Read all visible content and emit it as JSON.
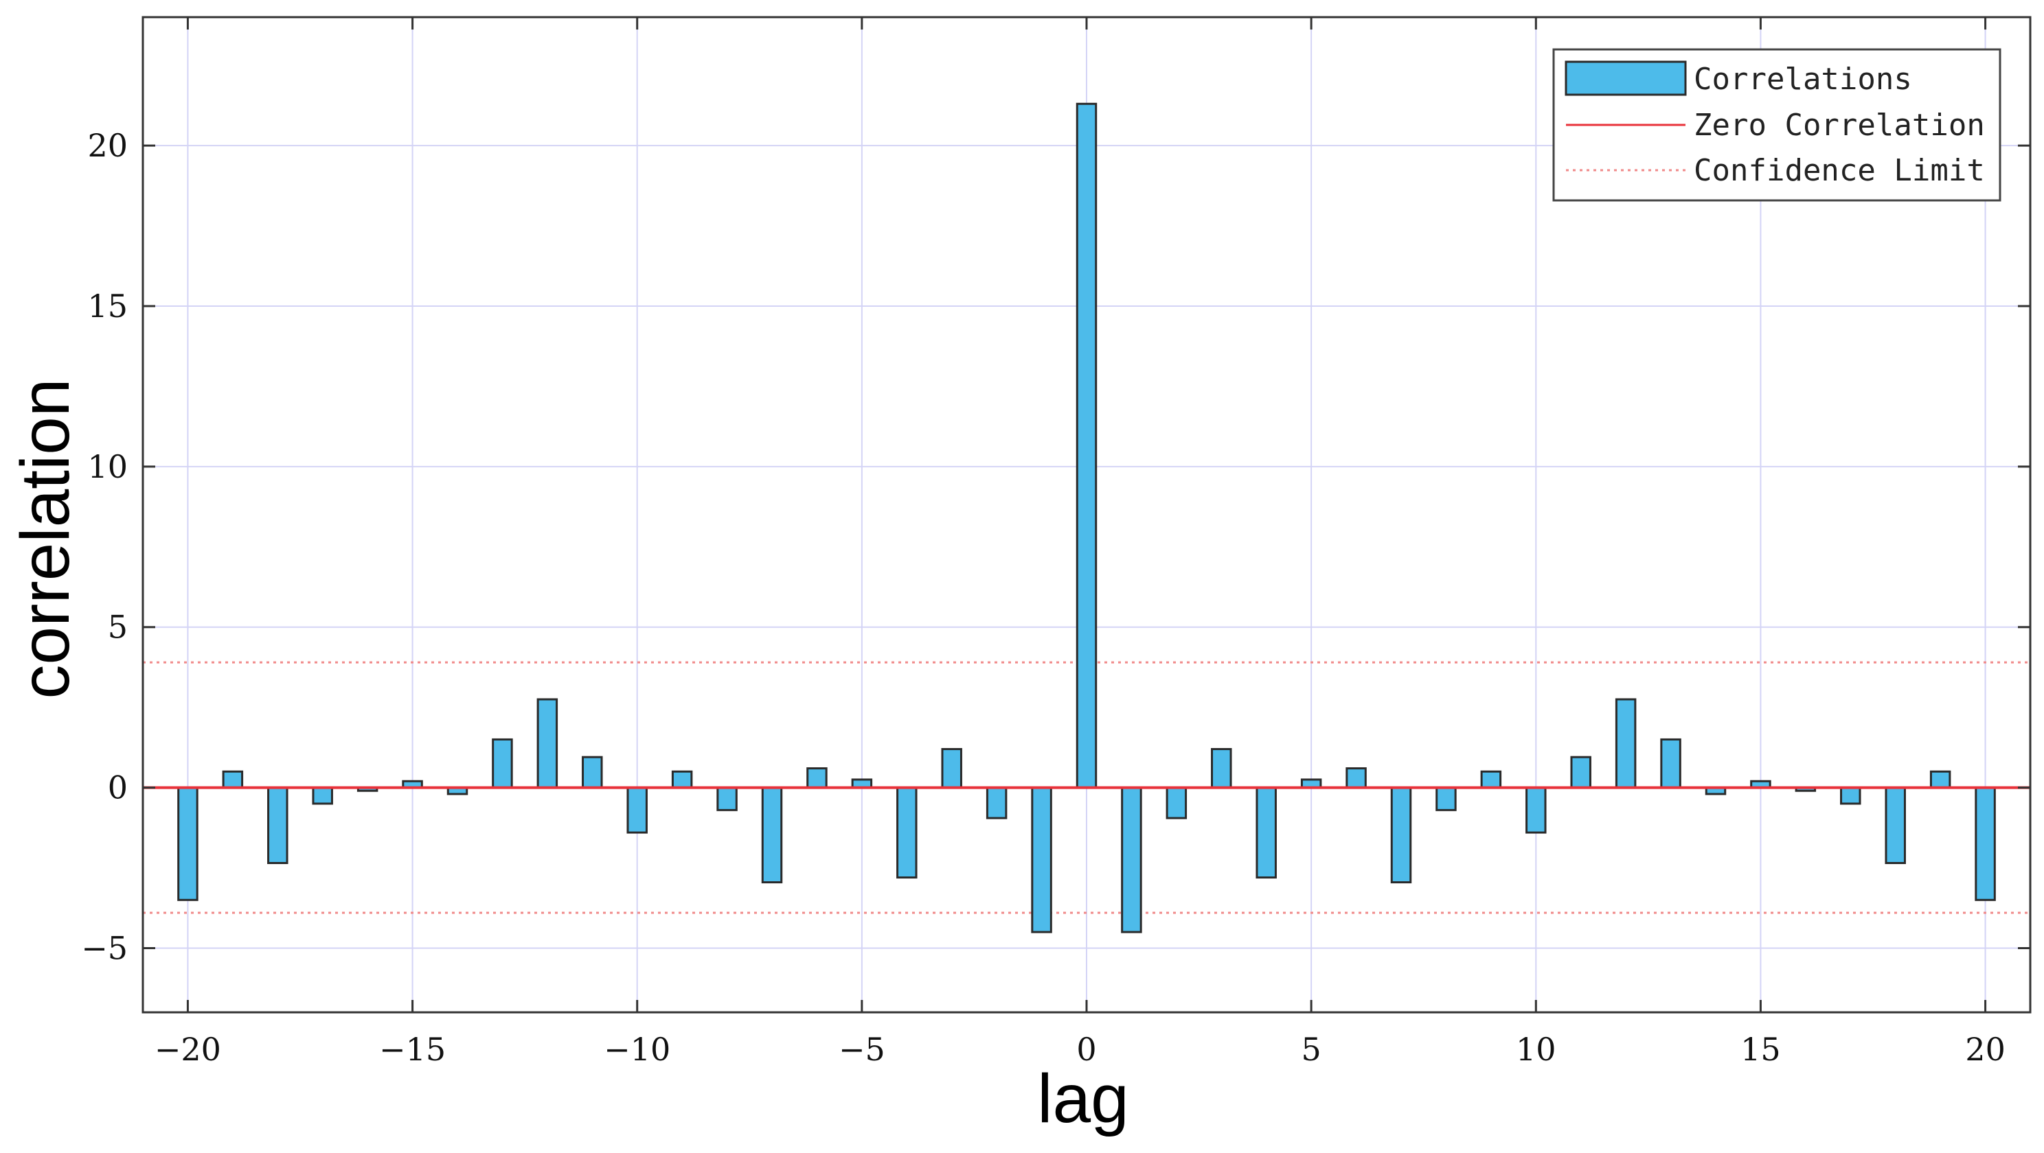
{
  "colors": {
    "bar_fill": "#4dbbea",
    "bar_edge": "#2a2a2a",
    "zero_line": "#e8323a",
    "confidence_line": "#f08a8a",
    "grid": "#d4d4f6",
    "axes": "#333333"
  },
  "chart_data": {
    "type": "bar",
    "xlabel": "lag",
    "ylabel": "correlation",
    "xlim": [
      -21,
      21
    ],
    "ylim": [
      -7,
      24
    ],
    "xticks": [
      -20,
      -15,
      -10,
      -5,
      0,
      5,
      10,
      15,
      20
    ],
    "yticks": [
      -5,
      0,
      5,
      10,
      15,
      20
    ],
    "grid": true,
    "legend_position": "top-right",
    "x": [
      -20,
      -19,
      -18,
      -17,
      -16,
      -15,
      -14,
      -13,
      -12,
      -11,
      -10,
      -9,
      -8,
      -7,
      -6,
      -5,
      -4,
      -3,
      -2,
      -1,
      0,
      1,
      2,
      3,
      4,
      5,
      6,
      7,
      8,
      9,
      10,
      11,
      12,
      13,
      14,
      15,
      16,
      17,
      18,
      19,
      20
    ],
    "series": [
      {
        "name": "Correlations",
        "values": [
          -3.5,
          0.5,
          -2.35,
          -0.5,
          -0.1,
          0.2,
          -0.2,
          1.5,
          2.75,
          0.95,
          -1.4,
          0.5,
          -0.7,
          -2.95,
          0.6,
          0.25,
          -2.8,
          1.2,
          -0.95,
          -4.5,
          21.3,
          -4.5,
          -0.95,
          1.2,
          -2.8,
          0.25,
          0.6,
          -2.95,
          -0.7,
          0.5,
          -1.4,
          0.95,
          2.75,
          1.5,
          -0.2,
          0.2,
          -0.1,
          -0.5,
          -2.35,
          0.5,
          -3.5
        ]
      }
    ],
    "zero_line": 0,
    "confidence_limit": 3.9,
    "legend": [
      "Correlations",
      "Zero Correlation",
      "Confidence Limit"
    ]
  }
}
